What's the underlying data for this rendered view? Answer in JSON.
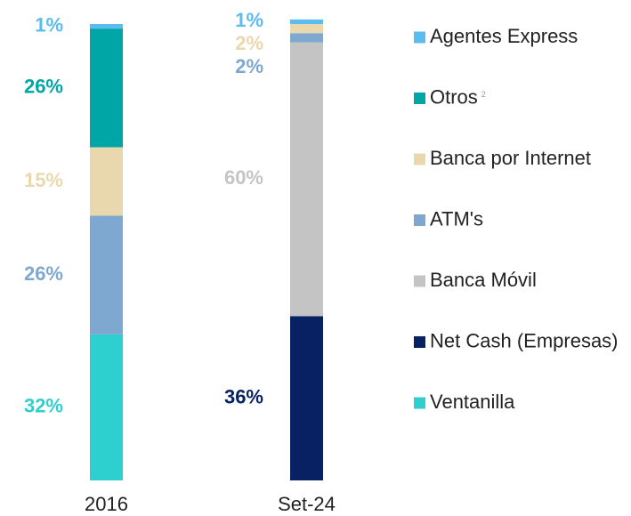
{
  "chart_data": {
    "type": "stacked_bar",
    "categories": [
      "2016",
      "Set-24"
    ],
    "series": [
      {
        "name": "Ventanilla",
        "color": "#2dcfcf",
        "values": [
          32,
          0
        ],
        "value_labels": [
          "32%",
          null
        ]
      },
      {
        "name": "Net Cash (Empresas)",
        "color": "#072162",
        "values": [
          0,
          36
        ],
        "value_labels": [
          null,
          "36%"
        ]
      },
      {
        "name": "Banca Móvil",
        "color": "#c4c4c4",
        "values": [
          0,
          60
        ],
        "value_labels": [
          null,
          "60%"
        ]
      },
      {
        "name": "ATM's",
        "color": "#7fa8d0",
        "values": [
          26,
          2
        ],
        "value_labels": [
          "26%",
          "2%"
        ]
      },
      {
        "name": "Banca por Internet",
        "color": "#e9d8ad",
        "values": [
          15,
          2
        ],
        "value_labels": [
          "15%",
          "2%"
        ]
      },
      {
        "name": "Otros",
        "name_note": "2",
        "color": "#00a6a6",
        "values": [
          26,
          0
        ],
        "value_labels": [
          "26%",
          null
        ]
      },
      {
        "name": "Agentes Express",
        "color": "#5bbcf0",
        "values": [
          1,
          1
        ],
        "value_labels": [
          "1%",
          "1%"
        ]
      }
    ],
    "ylim": [
      0,
      100
    ]
  }
}
